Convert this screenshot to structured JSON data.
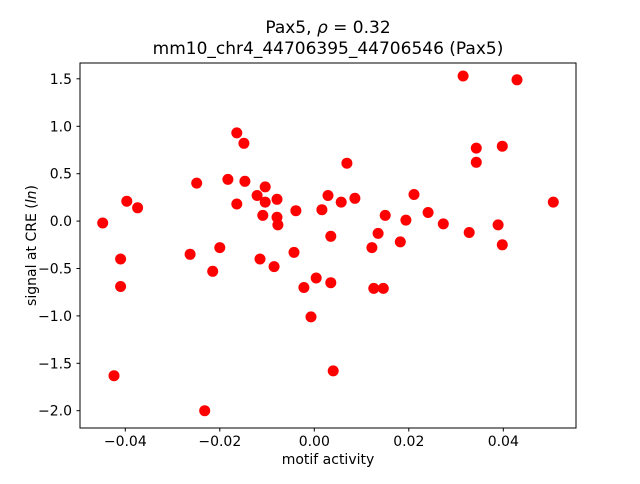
{
  "figure": {
    "background": "#ffffff"
  },
  "chart_data": {
    "type": "scatter",
    "title": {
      "prefix": "Pax5, ",
      "rho": "ρ",
      "suffix": " = 0.32"
    },
    "subtitle": "mm10_chr4_44706395_44706546 (Pax5)",
    "xlabel": "motif activity",
    "ylabel": {
      "prefix": "signal at CRE (",
      "italic": "ln",
      "suffix": ")"
    },
    "marker_color": "#ff0000",
    "axes_bg": "#ffffff",
    "spine_color": "#000000",
    "grid": false,
    "legend": "none",
    "xlim": [
      -0.0496,
      0.0554
    ],
    "ylim": [
      -2.182,
      1.667
    ],
    "x_ticks": [
      {
        "value": -0.04,
        "label": "−0.04"
      },
      {
        "value": -0.02,
        "label": "−0.02"
      },
      {
        "value": 0.0,
        "label": "0.00"
      },
      {
        "value": 0.02,
        "label": "0.02"
      },
      {
        "value": 0.04,
        "label": "0.04"
      }
    ],
    "y_ticks": [
      {
        "value": 1.5,
        "label": "1.5"
      },
      {
        "value": 1.0,
        "label": "1.0"
      },
      {
        "value": 0.5,
        "label": "0.5"
      },
      {
        "value": 0.0,
        "label": "0.0"
      },
      {
        "value": -0.5,
        "label": "−0.5"
      },
      {
        "value": -1.0,
        "label": "−1.0"
      },
      {
        "value": -1.5,
        "label": "−1.5"
      },
      {
        "value": -2.0,
        "label": "−2.0"
      }
    ],
    "points": [
      [
        -0.0164,
        0.93
      ],
      [
        -0.0149,
        0.82
      ],
      [
        0.0069,
        0.61
      ],
      [
        0.0315,
        1.53
      ],
      [
        0.0429,
        1.49
      ],
      [
        0.0343,
        0.77
      ],
      [
        0.0343,
        0.62
      ],
      [
        0.0398,
        0.79
      ],
      [
        -0.0249,
        0.4
      ],
      [
        -0.0183,
        0.44
      ],
      [
        -0.0147,
        0.42
      ],
      [
        -0.0397,
        0.21
      ],
      [
        -0.0374,
        0.14
      ],
      [
        -0.0448,
        -0.02
      ],
      [
        -0.0164,
        0.18
      ],
      [
        -0.0104,
        0.36
      ],
      [
        -0.0121,
        0.27
      ],
      [
        -0.0104,
        0.2
      ],
      [
        -0.0079,
        0.23
      ],
      [
        -0.0109,
        0.06
      ],
      [
        -0.0079,
        0.04
      ],
      [
        -0.0077,
        -0.04
      ],
      [
        -0.0039,
        0.11
      ],
      [
        0.0016,
        0.12
      ],
      [
        0.0029,
        0.27
      ],
      [
        0.0057,
        0.2
      ],
      [
        0.0086,
        0.24
      ],
      [
        0.015,
        0.06
      ],
      [
        0.0194,
        0.01
      ],
      [
        0.0211,
        0.28
      ],
      [
        0.0241,
        0.09
      ],
      [
        0.0273,
        -0.03
      ],
      [
        0.0328,
        -0.12
      ],
      [
        0.0389,
        -0.04
      ],
      [
        0.0398,
        -0.25
      ],
      [
        0.0506,
        0.2
      ],
      [
        0.0035,
        -0.16
      ],
      [
        0.0135,
        -0.13
      ],
      [
        0.0122,
        -0.28
      ],
      [
        0.0182,
        -0.22
      ],
      [
        -0.0043,
        -0.33
      ],
      [
        -0.0115,
        -0.4
      ],
      [
        -0.0085,
        -0.48
      ],
      [
        0.0004,
        -0.6
      ],
      [
        0.0035,
        -0.65
      ],
      [
        -0.0022,
        -0.7
      ],
      [
        0.0126,
        -0.71
      ],
      [
        0.0146,
        -0.71
      ],
      [
        -0.0263,
        -0.35
      ],
      [
        -0.02,
        -0.28
      ],
      [
        -0.0215,
        -0.53
      ],
      [
        -0.041,
        -0.4
      ],
      [
        -0.041,
        -0.69
      ],
      [
        -0.0424,
        -1.63
      ],
      [
        -0.0232,
        -2.0
      ],
      [
        -0.0007,
        -1.01
      ],
      [
        0.004,
        -1.58
      ]
    ]
  }
}
